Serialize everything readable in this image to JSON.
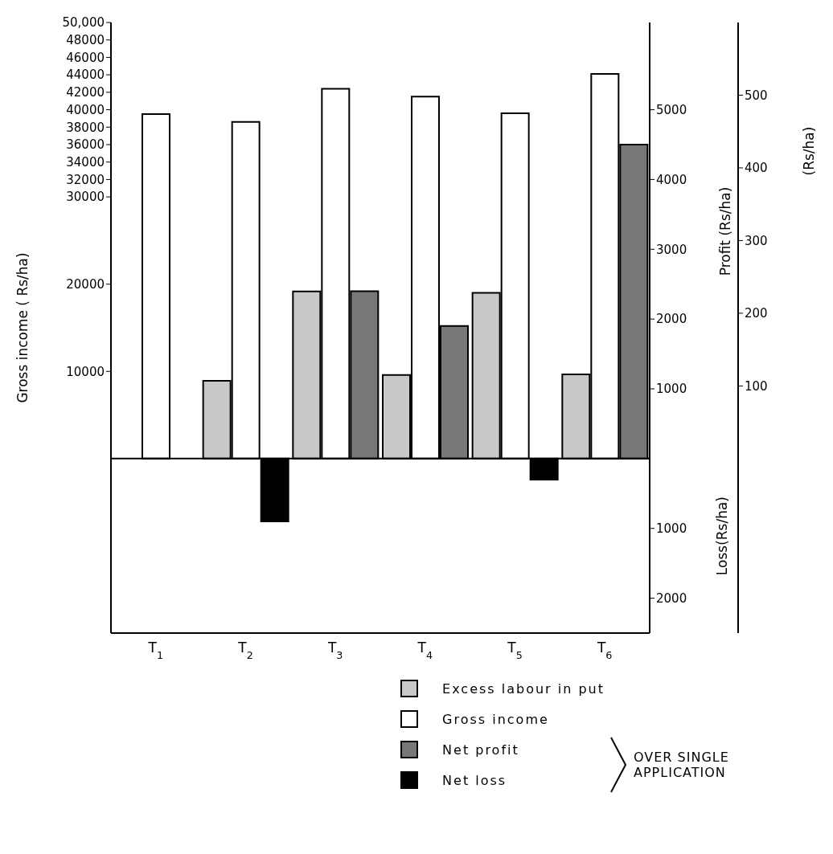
{
  "chart_data": {
    "type": "bar",
    "categories": [
      "T$_{1}$",
      "T$_{2}$",
      "T$_{3}$",
      "T$_{4}$",
      "T$_{5}$",
      "T$_{6}$"
    ],
    "ylabel": "Gross income ( Rs/ha)",
    "y2label": "Profit (Rs/ha)",
    "y3label": "(Rs/ha)",
    "ylim": [
      -20000,
      50000
    ],
    "yticks": [
      10000,
      20000,
      30000,
      32000,
      34000,
      36000,
      38000,
      40000,
      42000,
      44000,
      46000,
      48000,
      {
        "value": 50000,
        "label": "50,000"
      }
    ],
    "y2lim": [
      -2500,
      6250
    ],
    "y2ticks": [
      {
        "value": -2000,
        "label": "2000"
      },
      {
        "value": -1000,
        "label": "1000"
      },
      1000,
      2000,
      3000,
      4000,
      5000
    ],
    "y3lim": [
      -240,
      600
    ],
    "y3ticks": [
      100,
      200,
      300,
      400,
      500
    ],
    "series": [
      {
        "name": "Excess labour in put",
        "color": "#c8c8c8",
        "values": [
          null,
          107,
          230,
          115,
          228,
          116
        ],
        "axis": "y3"
      },
      {
        "name": "Gross income",
        "color": "#ffffff",
        "values": [
          39500,
          38600,
          42400,
          41500,
          39600,
          44100
        ]
      },
      {
        "name": "Net profit",
        "color": "#777777",
        "values": [
          null,
          null,
          2400,
          1900,
          null,
          4500
        ],
        "axis": "y2"
      },
      {
        "name": "Net loss",
        "color": "#000000",
        "values": [
          null,
          -900,
          null,
          null,
          -300,
          null
        ],
        "axis": "y2"
      }
    ],
    "legend": "bottom right",
    "grid": false,
    "annotations": [
      "Loss(Rs/ha)",
      "OVER SINGLE APPLICATION"
    ]
  }
}
